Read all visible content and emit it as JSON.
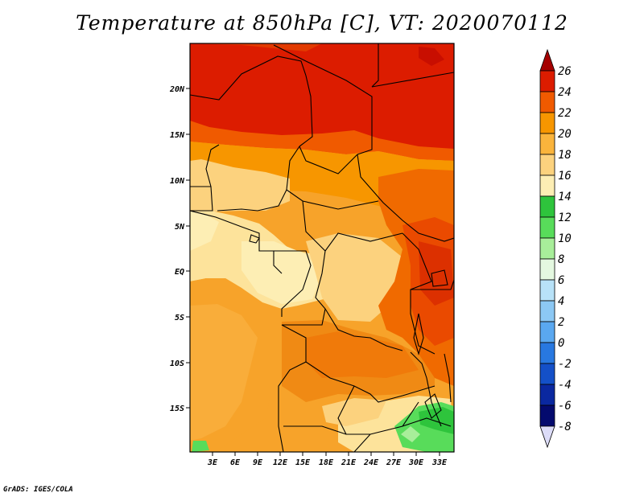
{
  "title": "Temperature at 850hPa [C], VT: 2020070112",
  "footer": "GrADS: IGES/COLA",
  "map": {
    "lat_labels": [
      "20N",
      "15N",
      "10N",
      "5N",
      "EQ",
      "5S",
      "10S",
      "15S"
    ],
    "lon_labels": [
      "3E",
      "6E",
      "9E",
      "12E",
      "15E",
      "18E",
      "21E",
      "24E",
      "27E",
      "30E",
      "33E"
    ]
  },
  "colorbar": {
    "levels": [
      "26",
      "24",
      "22",
      "20",
      "18",
      "16",
      "14",
      "12",
      "10",
      "8",
      "6",
      "4",
      "2",
      "0",
      "-2",
      "-4",
      "-6",
      "-8"
    ],
    "colors": [
      "#a50000",
      "#dc1c00",
      "#f05a00",
      "#f79600",
      "#fab43c",
      "#fcd27e",
      "#fdeeb4",
      "#2ec43c",
      "#58dc5a",
      "#a8ee9a",
      "#e4f8e0",
      "#b8e2f8",
      "#8cc8f4",
      "#5aa8f0",
      "#2878e0",
      "#1450c8",
      "#0a28a0",
      "#040a6e",
      "#dcdcf8"
    ]
  }
}
